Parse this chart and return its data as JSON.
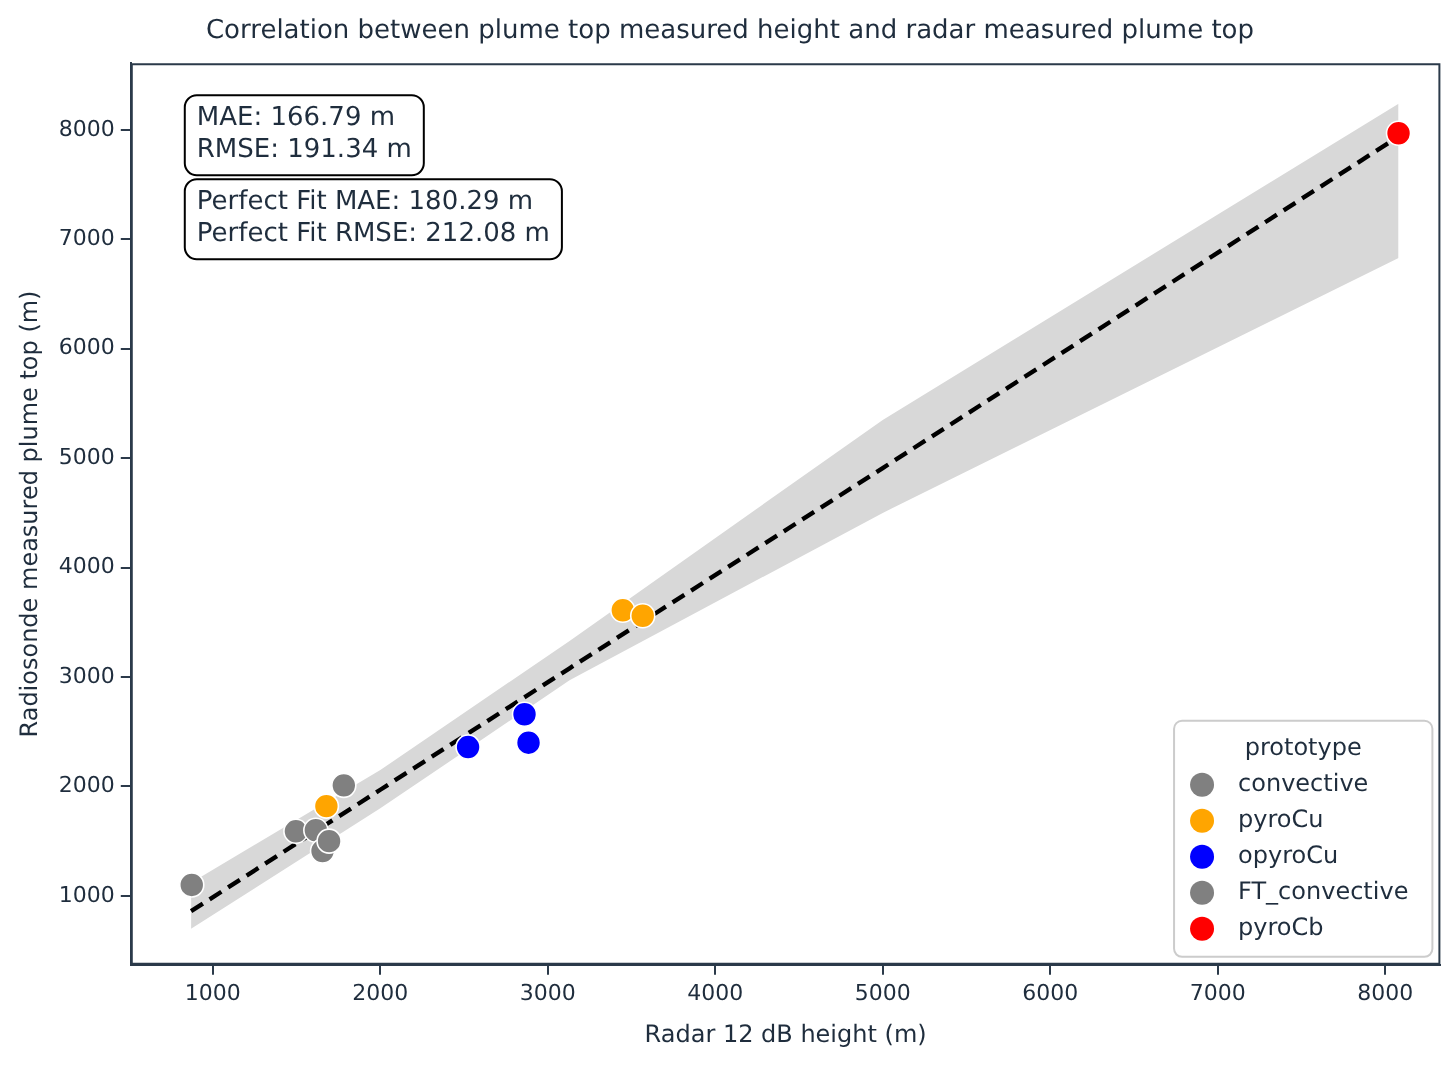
{
  "chart_data": {
    "type": "scatter",
    "title": "Correlation between plume top measured height and radar measured plume top",
    "xlabel": "Radar 12 dB height (m)",
    "ylabel": "Radiosonde measured plume top (m)",
    "legend_title": "prototype",
    "xlim": [
      510,
      8330
    ],
    "ylim": [
      370,
      8610
    ],
    "xticks": [
      1000,
      2000,
      3000,
      4000,
      5000,
      6000,
      7000,
      8000
    ],
    "yticks": [
      1000,
      2000,
      3000,
      4000,
      5000,
      6000,
      7000,
      8000
    ],
    "grid": false,
    "legend": "bottom right",
    "marker": "circle",
    "annotations": [
      "MAE: 166.79 m\nRMSE: 191.34 m",
      "Perfect Fit MAE: 180.29 m\nPerfect Fit RMSE: 212.08 m"
    ],
    "series": [
      {
        "name": "convective",
        "color": "#808080",
        "x": [
          874,
          1496,
          1615,
          1655,
          1782
        ],
        "values": [
          1100,
          1590,
          1600,
          1410,
          2010
        ]
      },
      {
        "name": "pyroCu",
        "color": "#ffa500",
        "x": [
          1678,
          3448,
          3567
        ],
        "values": [
          1820,
          3610,
          3560
        ]
      },
      {
        "name": "opyroCu",
        "color": "#0000ff",
        "x": [
          2524,
          2861,
          2885
        ],
        "values": [
          2360,
          2660,
          2400
        ]
      },
      {
        "name": "FT_convective",
        "color": "#808080",
        "x": [
          1694
        ],
        "values": [
          1500
        ]
      },
      {
        "name": "pyroCb",
        "color": "#ff0000",
        "x": [
          8080
        ],
        "values": [
          7970
        ]
      },
      {
        "type": "line",
        "color": "#000000",
        "line_style": "dashed",
        "marker": "none",
        "x": [
          870,
          2000,
          3130,
          5000,
          8080
        ],
        "values": [
          860,
          1970,
          3080,
          4910,
          7940
        ],
        "lower": [
          700,
          1800,
          2970,
          4500,
          6830
        ],
        "upper": [
          1120,
          2150,
          3330,
          5350,
          8240
        ]
      }
    ]
  }
}
